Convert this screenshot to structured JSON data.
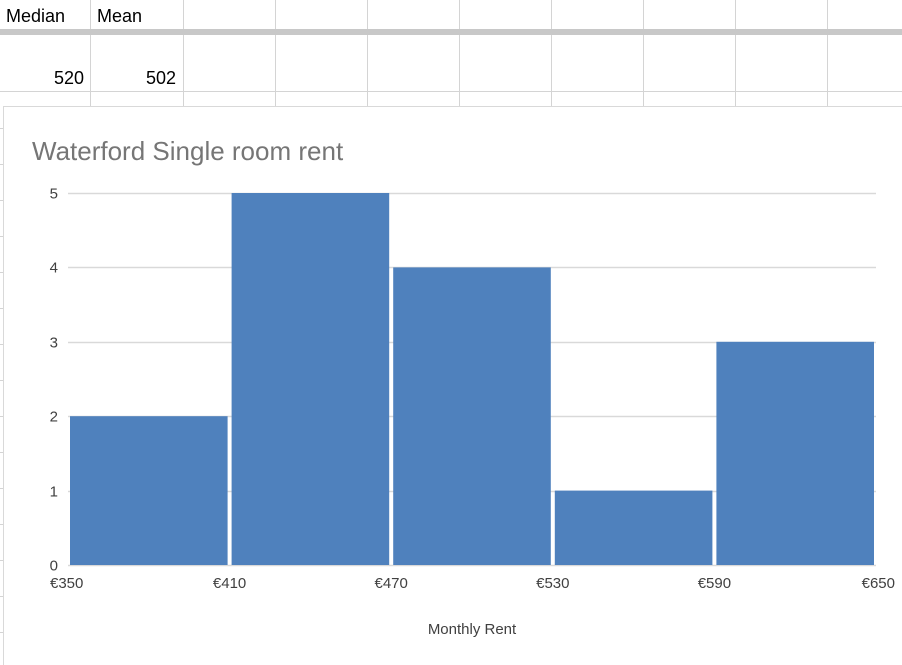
{
  "sheet": {
    "header_row": [
      "Median",
      "Mean"
    ],
    "value_row": [
      "520",
      "502"
    ]
  },
  "chart_data": {
    "type": "bar",
    "title": "Waterford Single room rent",
    "xlabel": "Monthly Rent",
    "ylabel": "",
    "bin_edges": [
      "€350",
      "€410",
      "€470",
      "€530",
      "€590",
      "€650"
    ],
    "bin_edge_values": [
      350,
      410,
      470,
      530,
      590,
      650
    ],
    "values": [
      2,
      5,
      4,
      1,
      3
    ],
    "ylim": [
      0,
      5
    ],
    "yticks": [
      "0",
      "1",
      "2",
      "3",
      "4",
      "5"
    ],
    "grid": true,
    "legend": "none",
    "bar_color": "#4f81bd",
    "grid_color": "#d9d9d9"
  }
}
